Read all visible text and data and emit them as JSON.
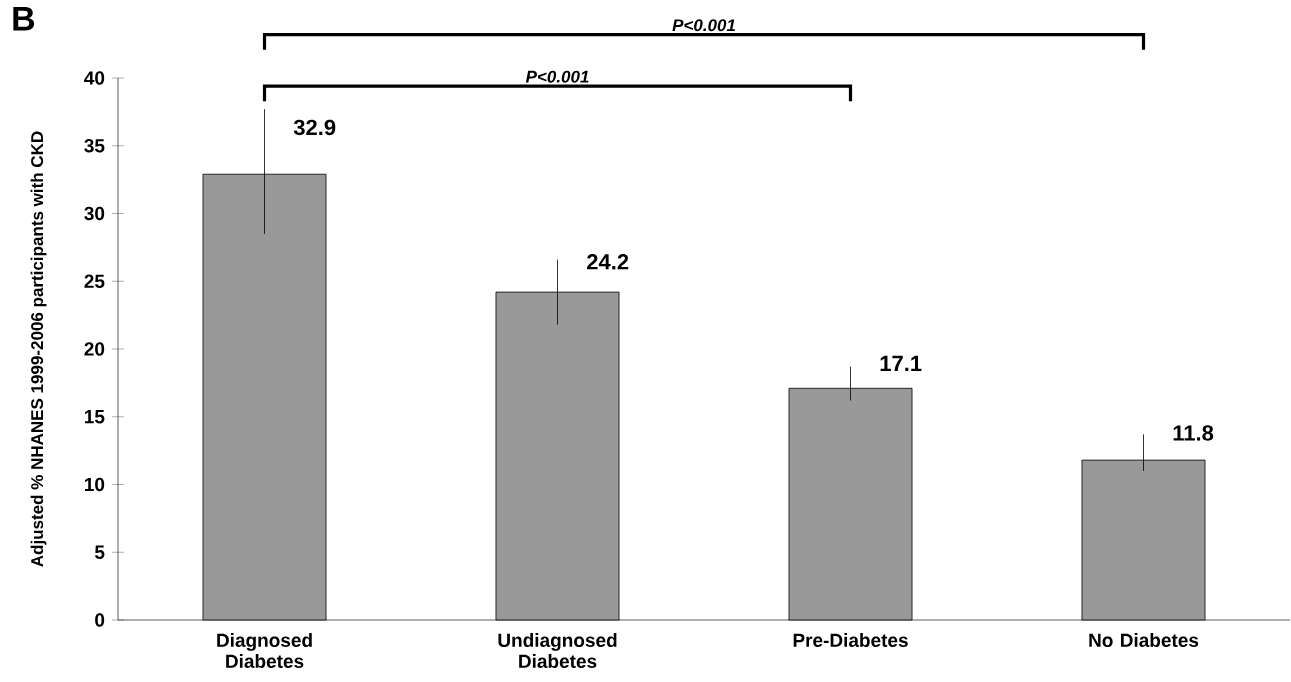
{
  "chart_data": {
    "type": "bar",
    "title": "B",
    "ylabel": "Adjusted % NHANES 1999-2006 participants with CKD",
    "categories": [
      "Diagnosed Diabetes",
      "Undiagnosed Diabetes",
      "Pre-Diabetes",
      "No Diabetes"
    ],
    "values": [
      32.9,
      24.2,
      17.1,
      11.8
    ],
    "color": "#999999",
    "errors": [
      [
        28.5,
        37.7
      ],
      [
        21.8,
        26.6
      ],
      [
        16.2,
        18.7
      ],
      [
        11.0,
        13.7
      ]
    ],
    "value_labels": [
      "32.9",
      "24.2",
      "17.1",
      "11.8"
    ],
    "ylim": [
      0,
      40
    ],
    "yticks": [
      0,
      5,
      10,
      15,
      20,
      25,
      30,
      35,
      40
    ],
    "annotations": [
      "P<0.001",
      "P<0.001"
    ]
  }
}
